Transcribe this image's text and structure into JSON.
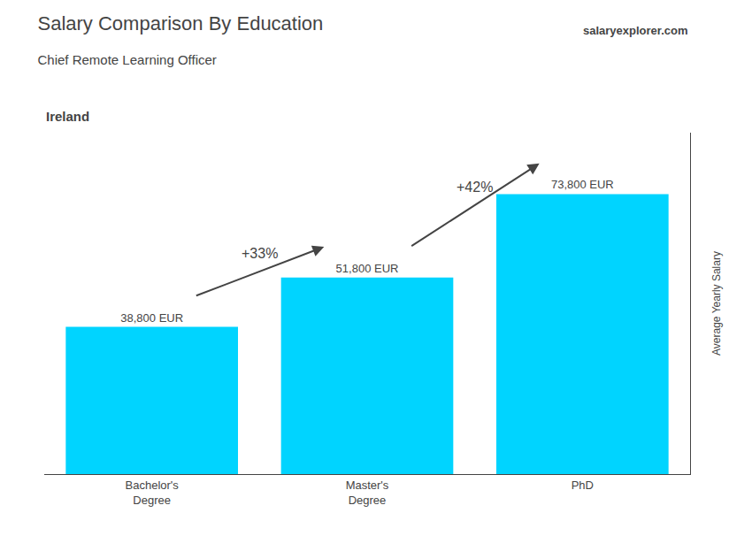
{
  "chart_data": {
    "type": "bar",
    "title": "Salary Comparison By Education",
    "subtitle": "Chief Remote Learning Officer",
    "ylabel": "Average Yearly Salary",
    "categories": [
      "Bachelor's\nDegree",
      "Master's\nDegree",
      "PhD"
    ],
    "values": [
      38800,
      51800,
      73800
    ],
    "value_labels": [
      "38,800 EUR",
      "51,800 EUR",
      "73,800 EUR"
    ],
    "data_labels": true,
    "color": "#00d4ff",
    "ylim": [
      0,
      90000
    ],
    "yticks": [],
    "tick_labels": "x",
    "grid": false,
    "annotations": [
      {
        "text": "Ireland"
      },
      {
        "text": "salaryexplorer.com"
      },
      {
        "text": "+33%",
        "from": "Bachelor's\nDegree",
        "to": "Master's\nDegree"
      },
      {
        "text": "+42%",
        "from": "Master's\nDegree",
        "to": "PhD"
      }
    ]
  }
}
